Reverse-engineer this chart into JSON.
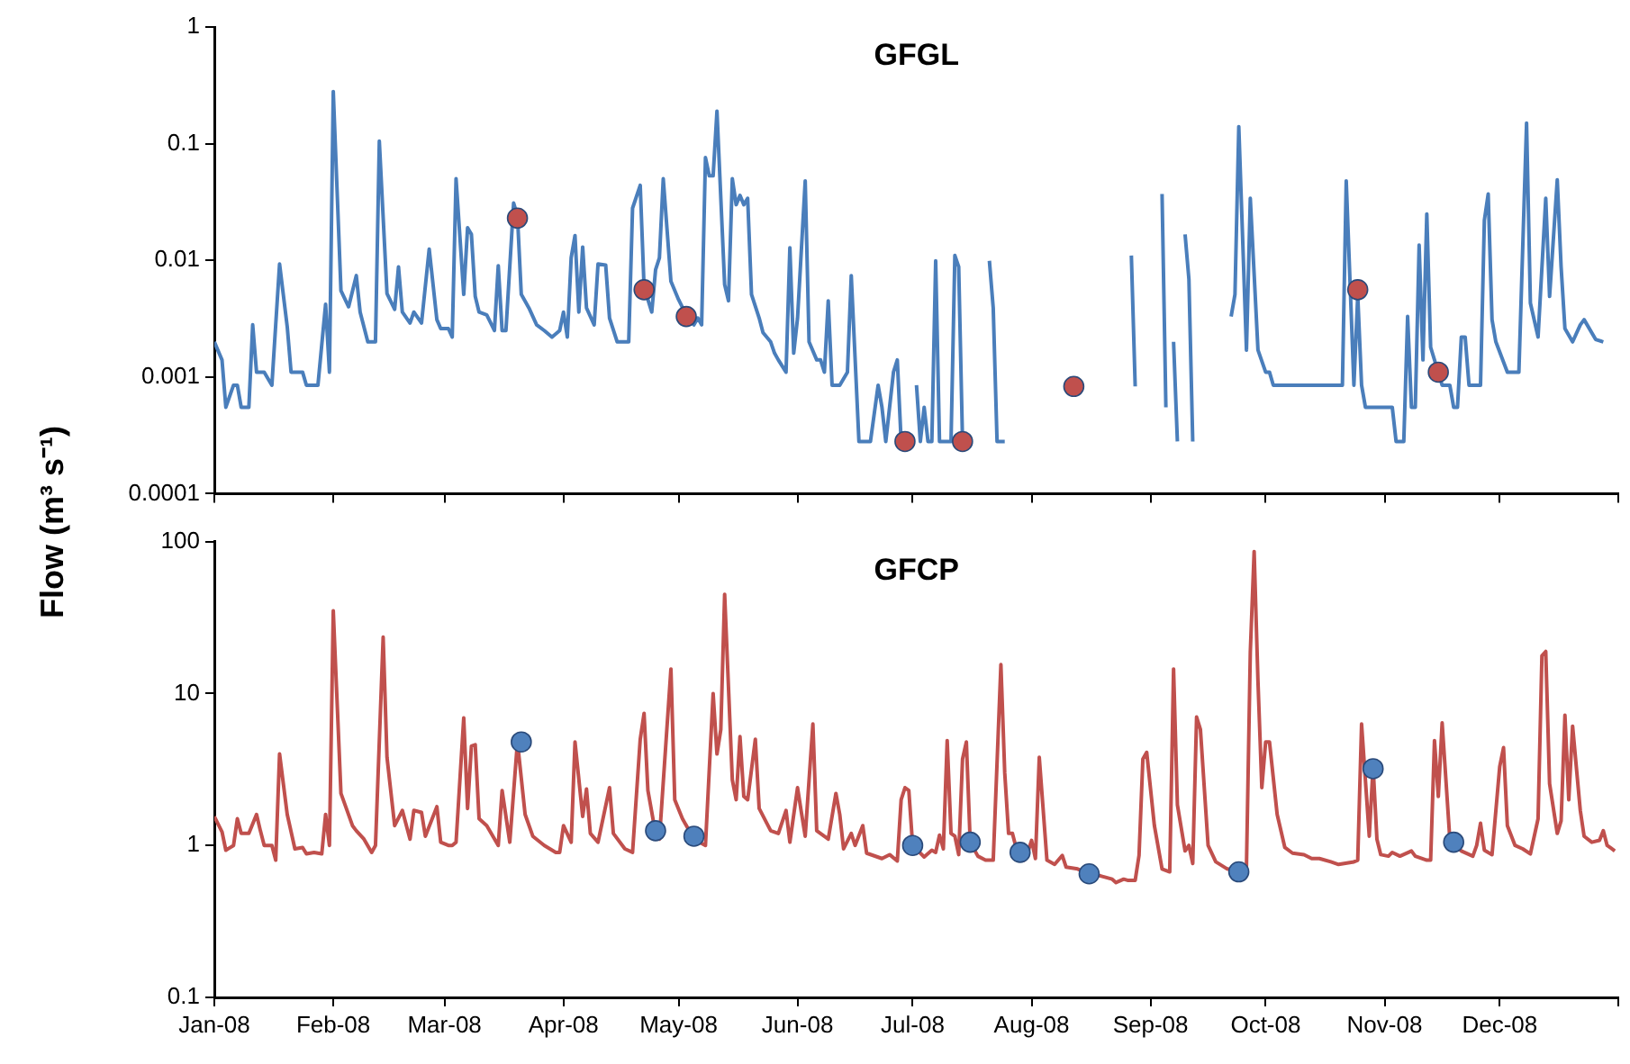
{
  "chart_data": [
    {
      "type": "line",
      "title": "GFGL",
      "ylabel": "Flow (m³ s⁻¹)",
      "log": "y",
      "grid": false,
      "legend": false,
      "tick_labels": "y",
      "xlim": [
        "2008-01-01",
        "2009-01-01"
      ],
      "xticks": [
        {
          "value": "2008-01-01",
          "label": null
        },
        {
          "value": "2008-02-01",
          "label": null
        },
        {
          "value": "2008-03-01",
          "label": null
        },
        {
          "value": "2008-04-01",
          "label": null
        },
        {
          "value": "2008-05-01",
          "label": null
        },
        {
          "value": "2008-06-01",
          "label": null
        },
        {
          "value": "2008-07-01",
          "label": null
        },
        {
          "value": "2008-08-01",
          "label": null
        },
        {
          "value": "2008-09-01",
          "label": null
        },
        {
          "value": "2008-10-01",
          "label": null
        },
        {
          "value": "2008-11-01",
          "label": null
        },
        {
          "value": "2008-12-01",
          "label": null
        },
        {
          "value": "2009-01-01",
          "label": null
        }
      ],
      "ylim": [
        0.0001,
        1
      ],
      "yticks": [
        0.0001,
        0.001,
        0.01,
        0.1,
        1
      ],
      "series": [
        {
          "color": "#4a7ebb",
          "marker": "none",
          "x": [
            "2008-01-01",
            "2008-01-03",
            "2008-01-04",
            "2008-01-06",
            "2008-01-07",
            "2008-01-08",
            "2008-01-10",
            "2008-01-11",
            "2008-01-12",
            "2008-01-14",
            "2008-01-16",
            "2008-01-18",
            "2008-01-20",
            "2008-01-21",
            "2008-01-24",
            "2008-01-25",
            "2008-01-28",
            "2008-01-30",
            "2008-01-31",
            "2008-02-01",
            "2008-02-03",
            "2008-02-05",
            "2008-02-07",
            "2008-02-08",
            "2008-02-10",
            "2008-02-12",
            "2008-02-13",
            "2008-02-15",
            "2008-02-17",
            "2008-02-18",
            "2008-02-19",
            "2008-02-21",
            "2008-02-22",
            "2008-02-24",
            "2008-02-26",
            "2008-02-28",
            "2008-02-29",
            "2008-03-02",
            "2008-03-03",
            "2008-03-04",
            "2008-03-06",
            "2008-03-07",
            "2008-03-08",
            "2008-03-09",
            "2008-03-10",
            "2008-03-12",
            "2008-03-14",
            "2008-03-15",
            "2008-03-16",
            "2008-03-17",
            "2008-03-19",
            "2008-03-20",
            "2008-03-21",
            "2008-03-23",
            "2008-03-25",
            "2008-03-27",
            "2008-03-29",
            "2008-03-31",
            "2008-04-01",
            "2008-04-02",
            "2008-04-03",
            "2008-04-04",
            "2008-04-05",
            "2008-04-06",
            "2008-04-07",
            "2008-04-09",
            "2008-04-10",
            "2008-04-12",
            "2008-04-13",
            "2008-04-15",
            "2008-04-18",
            "2008-04-19",
            "2008-04-21",
            "2008-04-22",
            "2008-04-24",
            "2008-04-25",
            "2008-04-26",
            "2008-04-27",
            "2008-04-29",
            "2008-05-01",
            "2008-05-03",
            "2008-05-05",
            "2008-05-06",
            "2008-05-07",
            "2008-05-08",
            "2008-05-09",
            "2008-05-10",
            "2008-05-11",
            "2008-05-13",
            "2008-05-14",
            "2008-05-15",
            "2008-05-16",
            "2008-05-17",
            "2008-05-18",
            "2008-05-19",
            "2008-05-20",
            "2008-05-22",
            "2008-05-23",
            "2008-05-25",
            "2008-05-26",
            "2008-05-27",
            "2008-05-29",
            "2008-05-30",
            "2008-05-31",
            "2008-06-01",
            "2008-06-03",
            "2008-06-04",
            "2008-06-06",
            "2008-06-07",
            "2008-06-08",
            "2008-06-09",
            "2008-06-10",
            "2008-06-12",
            "2008-06-14",
            "2008-06-15",
            "2008-06-17",
            "2008-06-20",
            "2008-06-22",
            "2008-06-23",
            "2008-06-24",
            "2008-06-26",
            "2008-06-27",
            "2008-06-28",
            "2008-06-29",
            "2008-07-02",
            "2008-07-03",
            "2008-07-04",
            "2008-07-05",
            "2008-07-06",
            "2008-07-07",
            "2008-07-08",
            "2008-07-11",
            "2008-07-12",
            "2008-07-13",
            "2008-07-14",
            "2008-07-15",
            "2008-07-16",
            "2008-07-21",
            "2008-07-22",
            "2008-07-23",
            "2008-07-25",
            "2008-07-26",
            "2008-08-27",
            "2008-08-28",
            "2008-08-29",
            "2008-09-04",
            "2008-09-05",
            "2008-09-06",
            "2008-09-07",
            "2008-09-08",
            "2008-09-09",
            "2008-09-10",
            "2008-09-11",
            "2008-09-12",
            "2008-09-13",
            "2008-09-22",
            "2008-09-23",
            "2008-09-24",
            "2008-09-26",
            "2008-09-27",
            "2008-09-29",
            "2008-10-01",
            "2008-10-02",
            "2008-10-03",
            "2008-10-21",
            "2008-10-22",
            "2008-10-24",
            "2008-10-25",
            "2008-10-26",
            "2008-10-27",
            "2008-11-03",
            "2008-11-04",
            "2008-11-06",
            "2008-11-07",
            "2008-11-08",
            "2008-11-09",
            "2008-11-10",
            "2008-11-11",
            "2008-11-12",
            "2008-11-13",
            "2008-11-16",
            "2008-11-18",
            "2008-11-19",
            "2008-11-20",
            "2008-11-21",
            "2008-11-22",
            "2008-11-23",
            "2008-11-26",
            "2008-11-27",
            "2008-11-28",
            "2008-11-29",
            "2008-11-30",
            "2008-12-03",
            "2008-12-06",
            "2008-12-08",
            "2008-12-09",
            "2008-12-11",
            "2008-12-13",
            "2008-12-14",
            "2008-12-16",
            "2008-12-17",
            "2008-12-18",
            "2008-12-20",
            "2008-12-22",
            "2008-12-23",
            "2008-12-26",
            "2008-12-28"
          ],
          "values": [
            0.002,
            0.0014,
            0.00055,
            0.00085,
            0.00085,
            0.00055,
            0.00055,
            0.0028,
            0.0011,
            0.0011,
            0.00085,
            0.0093,
            0.0027,
            0.0011,
            0.0011,
            0.00085,
            0.00085,
            0.0042,
            0.0011,
            0.28,
            0.0055,
            0.004,
            0.0074,
            0.0036,
            0.002,
            0.002,
            0.105,
            0.0052,
            0.0038,
            0.0088,
            0.0036,
            0.0029,
            0.0036,
            0.0029,
            0.0125,
            0.0031,
            0.0026,
            0.0026,
            0.0022,
            0.05,
            0.0051,
            0.019,
            0.0167,
            0.0049,
            0.0036,
            0.0034,
            0.0025,
            0.009,
            0.0025,
            0.0025,
            0.031,
            0.024,
            0.0051,
            0.0039,
            0.0028,
            0.0025,
            0.0022,
            0.0025,
            0.0036,
            0.0022,
            0.0105,
            0.0163,
            0.0036,
            0.013,
            0.0039,
            0.0028,
            0.0093,
            0.0091,
            0.0032,
            0.002,
            0.002,
            0.028,
            0.044,
            0.0059,
            0.0036,
            0.0083,
            0.0105,
            0.05,
            0.0066,
            0.0046,
            0.0034,
            0.0028,
            0.0032,
            0.0028,
            0.076,
            0.053,
            0.053,
            0.19,
            0.0062,
            0.0045,
            0.05,
            0.03,
            0.036,
            0.03,
            0.034,
            0.0051,
            0.0032,
            0.0024,
            0.002,
            0.0016,
            0.0014,
            0.0011,
            0.0128,
            0.0016,
            0.0032,
            0.048,
            0.002,
            0.0014,
            0.0014,
            0.0011,
            0.0045,
            0.00085,
            0.00085,
            0.0011,
            0.0074,
            0.00028,
            0.00028,
            0.00085,
            0.00055,
            0.00028,
            0.0011,
            0.0014,
            0.00028,
            null,
            0.00085,
            0.00028,
            0.00055,
            0.00028,
            0.00028,
            0.0099,
            0.00028,
            0.00028,
            0.011,
            0.0088,
            0.00028,
            0.00028,
            null,
            0.0099,
            0.0039,
            0.00028,
            0.00028,
            null,
            0.011,
            0.00083,
            null,
            0.037,
            0.00055,
            null,
            0.002,
            0.00028,
            null,
            0.0167,
            0.0069,
            0.00028,
            null,
            0.0033,
            0.0051,
            0.14,
            0.0017,
            0.034,
            0.0017,
            0.0011,
            0.0011,
            0.00085,
            0.00085,
            0.048,
            0.00085,
            0.005,
            0.00085,
            0.00055,
            0.00055,
            0.00028,
            0.00028,
            0.0033,
            0.00055,
            0.00055,
            0.0135,
            0.0014,
            0.025,
            0.0018,
            0.00085,
            0.00085,
            0.00055,
            0.00055,
            0.0022,
            0.0022,
            0.00085,
            0.00085,
            0.022,
            0.037,
            0.0031,
            0.002,
            0.0011,
            0.0011,
            0.15,
            0.0043,
            0.0022,
            0.034,
            0.0049,
            0.049,
            0.0088,
            0.0026,
            0.002,
            0.0028,
            0.0031,
            0.0021,
            0.002
          ]
        },
        {
          "type": "scatter",
          "color": "#c0504d",
          "marker": "circle",
          "x": [
            "2008-03-20",
            "2008-04-22",
            "2008-05-03",
            "2008-06-29",
            "2008-07-14",
            "2008-08-12",
            "2008-10-25",
            "2008-11-15"
          ],
          "values": [
            0.023,
            0.0056,
            0.0033,
            0.00028,
            0.00028,
            0.00083,
            0.0056,
            0.0011
          ]
        }
      ]
    },
    {
      "type": "line",
      "title": "GFCP",
      "log": "y",
      "grid": false,
      "legend": false,
      "xlim": [
        "2008-01-01",
        "2009-01-01"
      ],
      "xticks": [
        {
          "value": "2008-01-01",
          "label": "Jan-08"
        },
        {
          "value": "2008-02-01",
          "label": "Feb-08"
        },
        {
          "value": "2008-03-01",
          "label": "Mar-08"
        },
        {
          "value": "2008-04-01",
          "label": "Apr-08"
        },
        {
          "value": "2008-05-01",
          "label": "May-08"
        },
        {
          "value": "2008-06-01",
          "label": "Jun-08"
        },
        {
          "value": "2008-07-01",
          "label": "Jul-08"
        },
        {
          "value": "2008-08-01",
          "label": "Aug-08"
        },
        {
          "value": "2008-09-01",
          "label": "Sep-08"
        },
        {
          "value": "2008-10-01",
          "label": "Oct-08"
        },
        {
          "value": "2008-11-01",
          "label": "Nov-08"
        },
        {
          "value": "2008-12-01",
          "label": "Dec-08"
        },
        {
          "value": "2009-01-01",
          "label": null
        }
      ],
      "ylim": [
        0.1,
        100
      ],
      "yticks": [
        0.1,
        1,
        10,
        100
      ],
      "series": [
        {
          "color": "#c0504d",
          "marker": "none",
          "x": [
            "2008-01-01",
            "2008-01-03",
            "2008-01-04",
            "2008-01-06",
            "2008-01-07",
            "2008-01-08",
            "2008-01-10",
            "2008-01-12",
            "2008-01-13",
            "2008-01-14",
            "2008-01-16",
            "2008-01-17",
            "2008-01-18",
            "2008-01-20",
            "2008-01-22",
            "2008-01-24",
            "2008-01-25",
            "2008-01-27",
            "2008-01-29",
            "2008-01-30",
            "2008-01-31",
            "2008-02-01",
            "2008-02-03",
            "2008-02-06",
            "2008-02-07",
            "2008-02-09",
            "2008-02-11",
            "2008-02-12",
            "2008-02-14",
            "2008-02-15",
            "2008-02-17",
            "2008-02-19",
            "2008-02-21",
            "2008-02-22",
            "2008-02-24",
            "2008-02-25",
            "2008-02-28",
            "2008-02-29",
            "2008-03-02",
            "2008-03-03",
            "2008-03-04",
            "2008-03-06",
            "2008-03-07",
            "2008-03-08",
            "2008-03-09",
            "2008-03-10",
            "2008-03-12",
            "2008-03-15",
            "2008-03-16",
            "2008-03-18",
            "2008-03-20",
            "2008-03-22",
            "2008-03-24",
            "2008-03-27",
            "2008-03-30",
            "2008-03-31",
            "2008-04-01",
            "2008-04-03",
            "2008-04-04",
            "2008-04-06",
            "2008-04-07",
            "2008-04-08",
            "2008-04-10",
            "2008-04-13",
            "2008-04-14",
            "2008-04-17",
            "2008-04-19",
            "2008-04-21",
            "2008-04-22",
            "2008-04-23",
            "2008-04-25",
            "2008-04-26",
            "2008-04-29",
            "2008-04-30",
            "2008-05-02",
            "2008-05-05",
            "2008-05-08",
            "2008-05-10",
            "2008-05-11",
            "2008-05-12",
            "2008-05-13",
            "2008-05-15",
            "2008-05-16",
            "2008-05-17",
            "2008-05-18",
            "2008-05-19",
            "2008-05-21",
            "2008-05-22",
            "2008-05-25",
            "2008-05-27",
            "2008-05-29",
            "2008-05-30",
            "2008-06-01",
            "2008-06-02",
            "2008-06-03",
            "2008-06-05",
            "2008-06-06",
            "2008-06-09",
            "2008-06-11",
            "2008-06-12",
            "2008-06-13",
            "2008-06-15",
            "2008-06-16",
            "2008-06-18",
            "2008-06-19",
            "2008-06-23",
            "2008-06-25",
            "2008-06-27",
            "2008-06-28",
            "2008-06-29",
            "2008-06-30",
            "2008-07-01",
            "2008-07-04",
            "2008-07-06",
            "2008-07-07",
            "2008-07-08",
            "2008-07-09",
            "2008-07-10",
            "2008-07-11",
            "2008-07-12",
            "2008-07-13",
            "2008-07-14",
            "2008-07-15",
            "2008-07-16",
            "2008-07-18",
            "2008-07-20",
            "2008-07-22",
            "2008-07-24",
            "2008-07-25",
            "2008-07-26",
            "2008-07-27",
            "2008-07-28",
            "2008-07-30",
            "2008-07-31",
            "2008-08-01",
            "2008-08-02",
            "2008-08-03",
            "2008-08-05",
            "2008-08-07",
            "2008-08-09",
            "2008-08-10",
            "2008-08-13",
            "2008-08-16",
            "2008-08-19",
            "2008-08-22",
            "2008-08-23",
            "2008-08-25",
            "2008-08-26",
            "2008-08-28",
            "2008-08-29",
            "2008-08-30",
            "2008-08-31",
            "2008-09-02",
            "2008-09-04",
            "2008-09-06",
            "2008-09-07",
            "2008-09-08",
            "2008-09-10",
            "2008-09-11",
            "2008-09-12",
            "2008-09-13",
            "2008-09-14",
            "2008-09-16",
            "2008-09-18",
            "2008-09-21",
            "2008-09-24",
            "2008-09-26",
            "2008-09-27",
            "2008-09-28",
            "2008-09-29",
            "2008-09-30",
            "2008-10-01",
            "2008-10-02",
            "2008-10-04",
            "2008-10-06",
            "2008-10-08",
            "2008-10-11",
            "2008-10-13",
            "2008-10-15",
            "2008-10-18",
            "2008-10-20",
            "2008-10-24",
            "2008-10-25",
            "2008-10-26",
            "2008-10-28",
            "2008-10-29",
            "2008-10-30",
            "2008-10-31",
            "2008-11-02",
            "2008-11-03",
            "2008-11-05",
            "2008-11-08",
            "2008-11-09",
            "2008-11-12",
            "2008-11-13",
            "2008-11-14",
            "2008-11-15",
            "2008-11-16",
            "2008-11-18",
            "2008-11-21",
            "2008-11-24",
            "2008-11-25",
            "2008-11-26",
            "2008-11-27",
            "2008-11-29",
            "2008-12-01",
            "2008-12-02",
            "2008-12-03",
            "2008-12-05",
            "2008-12-07",
            "2008-12-09",
            "2008-12-11",
            "2008-12-12",
            "2008-12-13",
            "2008-12-14",
            "2008-12-16",
            "2008-12-17",
            "2008-12-18",
            "2008-12-19",
            "2008-12-20",
            "2008-12-22",
            "2008-12-23",
            "2008-12-25",
            "2008-12-27",
            "2008-12-28",
            "2008-12-29",
            "2008-12-30",
            "2008-12-31"
          ],
          "values": [
            1.55,
            1.23,
            0.93,
            1.0,
            1.5,
            1.2,
            1.2,
            1.6,
            1.25,
            1.0,
            1.0,
            0.8,
            4.0,
            1.6,
            0.95,
            0.97,
            0.88,
            0.9,
            0.88,
            1.6,
            1.0,
            35,
            2.2,
            1.35,
            1.25,
            1.1,
            0.9,
            1.0,
            23.5,
            3.8,
            1.35,
            1.7,
            1.1,
            1.7,
            1.65,
            1.15,
            1.8,
            1.05,
            1.0,
            1.0,
            1.05,
            6.9,
            1.75,
            4.5,
            4.6,
            1.5,
            1.35,
            1.0,
            2.3,
            1.05,
            4.8,
            1.6,
            1.15,
            1.0,
            0.9,
            0.9,
            1.35,
            1.05,
            4.8,
            1.55,
            2.35,
            1.2,
            1.05,
            2.4,
            1.2,
            0.95,
            0.9,
            5.0,
            7.4,
            2.3,
            1.2,
            1.1,
            14.5,
            2.0,
            1.5,
            1.1,
            1.0,
            10,
            4.0,
            5.8,
            45,
            2.7,
            2.0,
            5.2,
            2.1,
            2.0,
            5.0,
            1.75,
            1.25,
            1.2,
            1.7,
            1.05,
            2.4,
            1.65,
            1.15,
            6.3,
            1.25,
            1.1,
            2.2,
            1.6,
            0.95,
            1.2,
            1.0,
            1.35,
            0.89,
            0.82,
            0.87,
            0.79,
            2.0,
            2.4,
            2.3,
            1.0,
            0.84,
            0.93,
            0.9,
            1.17,
            0.95,
            4.9,
            1.2,
            1.15,
            0.87,
            3.7,
            4.8,
            1.05,
            0.85,
            0.8,
            0.8,
            15.5,
            3.0,
            1.2,
            1.2,
            0.96,
            0.8,
            0.9,
            1.08,
            0.82,
            3.8,
            0.8,
            0.75,
            0.86,
            0.72,
            0.7,
            0.65,
            0.63,
            0.6,
            0.57,
            0.6,
            0.59,
            0.59,
            0.86,
            3.7,
            4.1,
            1.35,
            0.7,
            0.67,
            14.5,
            1.85,
            0.92,
            1.0,
            0.76,
            7.0,
            5.8,
            1.0,
            0.78,
            0.7,
            0.68,
            0.73,
            18.7,
            86,
            12,
            2.4,
            4.8,
            4.8,
            1.6,
            0.97,
            0.89,
            0.87,
            0.82,
            0.82,
            0.78,
            0.75,
            0.78,
            0.8,
            6.3,
            1.15,
            3.3,
            1.1,
            0.87,
            0.85,
            0.9,
            0.85,
            0.92,
            0.85,
            0.8,
            0.8,
            4.9,
            2.1,
            6.4,
            1.1,
            0.92,
            0.85,
            1.0,
            1.4,
            0.93,
            0.87,
            3.3,
            4.4,
            1.35,
            1.0,
            0.95,
            0.88,
            1.5,
            17.7,
            18.9,
            2.55,
            1.2,
            1.45,
            7.2,
            2.0,
            6.1,
            1.7,
            1.15,
            1.05,
            1.08,
            1.25,
            1.0,
            0.96,
            0.92
          ]
        },
        {
          "type": "scatter",
          "color": "#4f81bd",
          "marker": "circle",
          "x": [
            "2008-03-21",
            "2008-04-25",
            "2008-05-05",
            "2008-07-01",
            "2008-07-16",
            "2008-07-29",
            "2008-08-16",
            "2008-09-24",
            "2008-10-29",
            "2008-11-19"
          ],
          "values": [
            4.8,
            1.25,
            1.15,
            1.0,
            1.05,
            0.9,
            0.65,
            0.67,
            3.2,
            1.05
          ]
        }
      ]
    }
  ]
}
